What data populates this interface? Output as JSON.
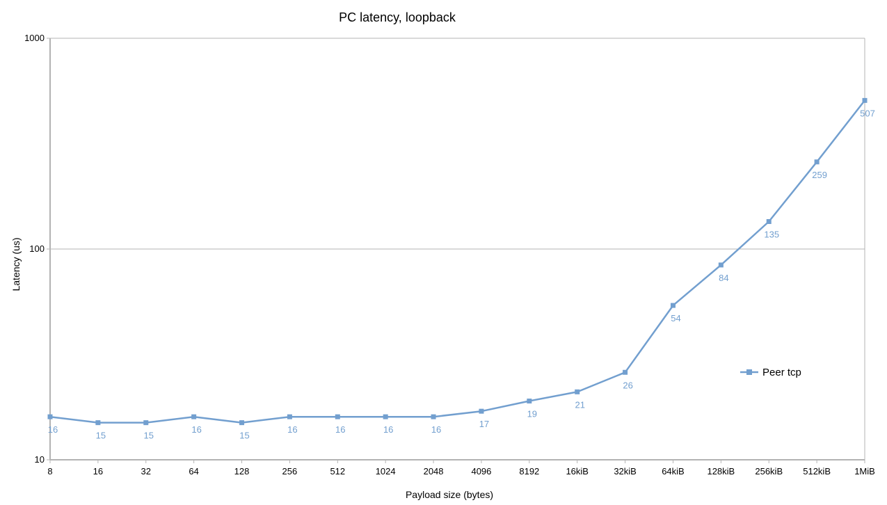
{
  "chart_data": {
    "type": "line",
    "title": "PC latency, loopback",
    "xlabel": "Payload size (bytes)",
    "ylabel": "Latency (us)",
    "yscale": "log",
    "ylim": [
      10,
      1000
    ],
    "yticks": [
      "10",
      "100",
      "1000"
    ],
    "grid": true,
    "legend_position": "right-inside",
    "categories": [
      "8",
      "16",
      "32",
      "64",
      "128",
      "256",
      "512",
      "1024",
      "2048",
      "4096",
      "8192",
      "16kiB",
      "32kiB",
      "64kiB",
      "128kiB",
      "256kiB",
      "512kiB",
      "1MiB"
    ],
    "series": [
      {
        "name": "Peer tcp",
        "color": "#729fcf",
        "marker": "square",
        "values": [
          16,
          15,
          15,
          16,
          15,
          16,
          16,
          16,
          16,
          17,
          19,
          21,
          26,
          54,
          84,
          135,
          259,
          507
        ]
      }
    ]
  }
}
